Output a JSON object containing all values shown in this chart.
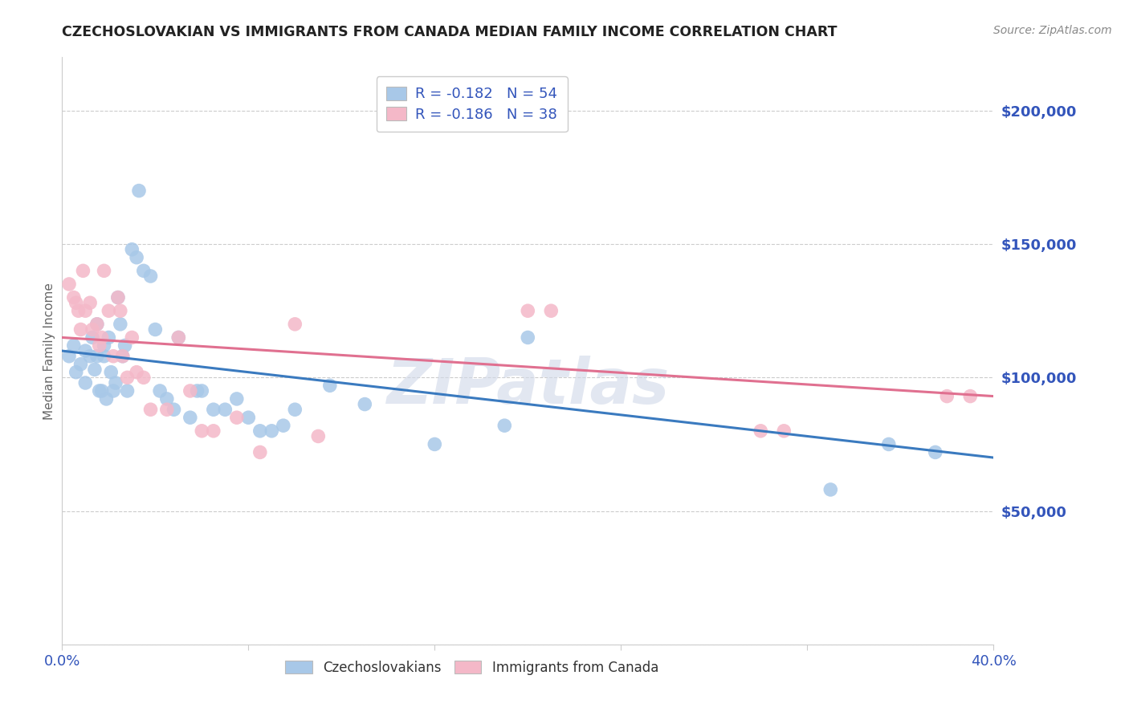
{
  "title": "CZECHOSLOVAKIAN VS IMMIGRANTS FROM CANADA MEDIAN FAMILY INCOME CORRELATION CHART",
  "source": "Source: ZipAtlas.com",
  "ylabel": "Median Family Income",
  "xlim": [
    0.0,
    0.4
  ],
  "ylim": [
    0,
    220000
  ],
  "yticks": [
    0,
    50000,
    100000,
    150000,
    200000
  ],
  "ytick_labels": [
    "",
    "$50,000",
    "$100,000",
    "$150,000",
    "$200,000"
  ],
  "xticks": [
    0.0,
    0.08,
    0.16,
    0.24,
    0.32,
    0.4
  ],
  "blue_color": "#a8c8e8",
  "pink_color": "#f4b8c8",
  "blue_line_color": "#3a7abf",
  "pink_line_color": "#e07090",
  "blue_label": "Czechoslovakians",
  "pink_label": "Immigrants from Canada",
  "blue_R": "-0.182",
  "blue_N": "54",
  "pink_R": "-0.186",
  "pink_N": "38",
  "watermark": "ZIPatlas",
  "axis_color": "#3355bb",
  "title_color": "#222222",
  "source_color": "#888888",
  "ylabel_color": "#666666",
  "background_color": "#ffffff",
  "grid_color": "#cccccc",
  "blue_scatter_x": [
    0.003,
    0.005,
    0.006,
    0.008,
    0.01,
    0.01,
    0.012,
    0.013,
    0.014,
    0.015,
    0.015,
    0.016,
    0.017,
    0.018,
    0.018,
    0.019,
    0.02,
    0.021,
    0.022,
    0.023,
    0.024,
    0.025,
    0.026,
    0.027,
    0.028,
    0.03,
    0.032,
    0.033,
    0.035,
    0.038,
    0.04,
    0.042,
    0.045,
    0.048,
    0.05,
    0.055,
    0.058,
    0.06,
    0.065,
    0.07,
    0.075,
    0.08,
    0.085,
    0.09,
    0.095,
    0.1,
    0.115,
    0.13,
    0.16,
    0.19,
    0.2,
    0.33,
    0.355,
    0.375
  ],
  "blue_scatter_y": [
    108000,
    112000,
    102000,
    105000,
    110000,
    98000,
    108000,
    115000,
    103000,
    108000,
    120000,
    95000,
    95000,
    108000,
    112000,
    92000,
    115000,
    102000,
    95000,
    98000,
    130000,
    120000,
    108000,
    112000,
    95000,
    148000,
    145000,
    170000,
    140000,
    138000,
    118000,
    95000,
    92000,
    88000,
    115000,
    85000,
    95000,
    95000,
    88000,
    88000,
    92000,
    85000,
    80000,
    80000,
    82000,
    88000,
    97000,
    90000,
    75000,
    82000,
    115000,
    58000,
    75000,
    72000
  ],
  "pink_scatter_x": [
    0.003,
    0.005,
    0.006,
    0.007,
    0.008,
    0.009,
    0.01,
    0.012,
    0.013,
    0.015,
    0.016,
    0.017,
    0.018,
    0.02,
    0.022,
    0.024,
    0.025,
    0.026,
    0.028,
    0.03,
    0.032,
    0.035,
    0.038,
    0.045,
    0.05,
    0.055,
    0.06,
    0.065,
    0.075,
    0.085,
    0.1,
    0.11,
    0.2,
    0.21,
    0.3,
    0.31,
    0.38,
    0.39
  ],
  "pink_scatter_y": [
    135000,
    130000,
    128000,
    125000,
    118000,
    140000,
    125000,
    128000,
    118000,
    120000,
    112000,
    115000,
    140000,
    125000,
    108000,
    130000,
    125000,
    108000,
    100000,
    115000,
    102000,
    100000,
    88000,
    88000,
    115000,
    95000,
    80000,
    80000,
    85000,
    72000,
    120000,
    78000,
    125000,
    125000,
    80000,
    80000,
    93000,
    93000
  ]
}
